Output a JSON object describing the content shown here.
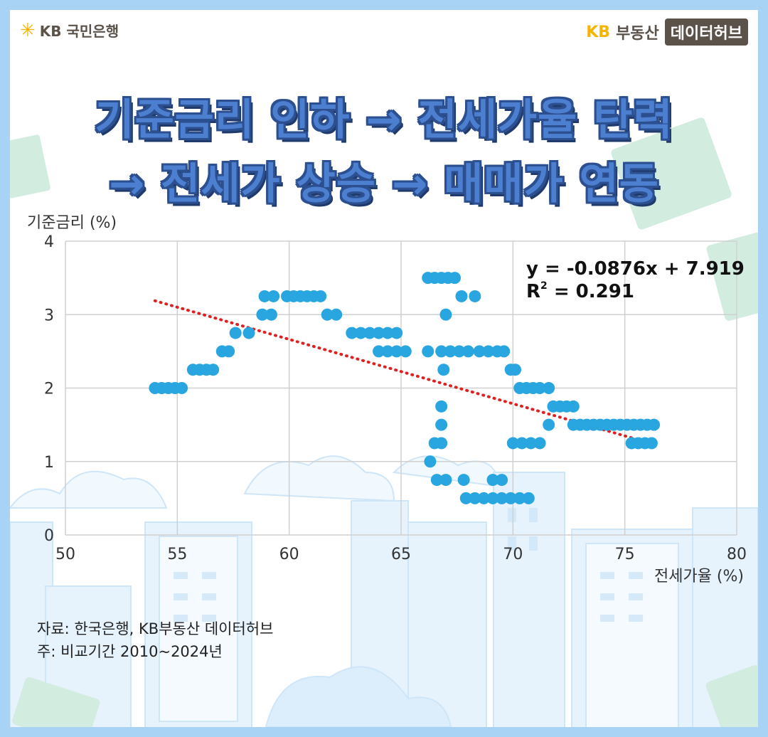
{
  "header": {
    "bank_logo": "KB 국민은행",
    "brand_kb": "KB",
    "brand_name": "부동산",
    "brand_badge": "데이터허브"
  },
  "title": {
    "line1": "기준금리 인하 → 전세가율 탄력",
    "line2": "→ 전세가 상승 → 매매가 연동"
  },
  "chart_data": {
    "type": "scatter",
    "title": "",
    "xlabel": "전세가율 (%)",
    "ylabel": "기준금리 (%)",
    "xlim": [
      50,
      80
    ],
    "ylim": [
      0,
      4
    ],
    "x_ticks": [
      "50",
      "55",
      "60",
      "65",
      "70",
      "75",
      "80"
    ],
    "y_ticks": [
      "0",
      "1",
      "2",
      "3",
      "4"
    ],
    "grid": true,
    "legend": "none",
    "point_color": "#29a6e0",
    "trend_color": "#e02020",
    "trendline": {
      "slope": -0.0876,
      "intercept": 7.919,
      "x_range": [
        54.0,
        75.8
      ]
    },
    "equation": "y = -0.0876x + 7.919",
    "r_squared_prefix": "R",
    "r_squared_sup": "2",
    "r_squared_value": " = 0.291",
    "points": [
      [
        54.0,
        2.0
      ],
      [
        54.3,
        2.0
      ],
      [
        54.6,
        2.0
      ],
      [
        54.9,
        2.0
      ],
      [
        55.2,
        2.0
      ],
      [
        55.7,
        2.25
      ],
      [
        56.0,
        2.25
      ],
      [
        56.3,
        2.25
      ],
      [
        56.6,
        2.25
      ],
      [
        57.0,
        2.5
      ],
      [
        57.3,
        2.5
      ],
      [
        57.6,
        2.75
      ],
      [
        58.2,
        2.75
      ],
      [
        58.8,
        3.0
      ],
      [
        59.2,
        3.0
      ],
      [
        58.9,
        3.25
      ],
      [
        59.3,
        3.25
      ],
      [
        59.9,
        3.25
      ],
      [
        60.2,
        3.25
      ],
      [
        60.5,
        3.25
      ],
      [
        60.8,
        3.25
      ],
      [
        61.1,
        3.25
      ],
      [
        61.4,
        3.25
      ],
      [
        61.7,
        3.0
      ],
      [
        62.1,
        3.0
      ],
      [
        62.8,
        2.75
      ],
      [
        63.2,
        2.75
      ],
      [
        63.6,
        2.75
      ],
      [
        64.0,
        2.75
      ],
      [
        64.4,
        2.75
      ],
      [
        64.8,
        2.75
      ],
      [
        64.0,
        2.5
      ],
      [
        64.4,
        2.5
      ],
      [
        64.8,
        2.5
      ],
      [
        65.2,
        2.5
      ],
      [
        66.2,
        2.5
      ],
      [
        66.2,
        3.5
      ],
      [
        66.5,
        3.5
      ],
      [
        66.8,
        3.5
      ],
      [
        67.1,
        3.5
      ],
      [
        67.4,
        3.5
      ],
      [
        67.7,
        3.25
      ],
      [
        68.3,
        3.25
      ],
      [
        67.0,
        3.0
      ],
      [
        66.8,
        2.5
      ],
      [
        67.2,
        2.5
      ],
      [
        67.6,
        2.5
      ],
      [
        68.0,
        2.5
      ],
      [
        68.5,
        2.5
      ],
      [
        68.9,
        2.5
      ],
      [
        69.3,
        2.5
      ],
      [
        69.6,
        2.5
      ],
      [
        66.9,
        2.25
      ],
      [
        69.9,
        2.25
      ],
      [
        70.1,
        2.25
      ],
      [
        70.3,
        2.0
      ],
      [
        70.6,
        2.0
      ],
      [
        70.9,
        2.0
      ],
      [
        71.2,
        2.0
      ],
      [
        71.6,
        2.0
      ],
      [
        66.8,
        1.75
      ],
      [
        71.8,
        1.75
      ],
      [
        72.1,
        1.75
      ],
      [
        72.4,
        1.75
      ],
      [
        72.7,
        1.75
      ],
      [
        66.8,
        1.5
      ],
      [
        71.6,
        1.5
      ],
      [
        72.7,
        1.5
      ],
      [
        73.0,
        1.5
      ],
      [
        73.3,
        1.5
      ],
      [
        73.6,
        1.5
      ],
      [
        73.9,
        1.5
      ],
      [
        74.2,
        1.5
      ],
      [
        74.5,
        1.5
      ],
      [
        74.8,
        1.5
      ],
      [
        75.1,
        1.5
      ],
      [
        75.4,
        1.5
      ],
      [
        75.7,
        1.5
      ],
      [
        76.0,
        1.5
      ],
      [
        76.3,
        1.5
      ],
      [
        66.5,
        1.25
      ],
      [
        66.8,
        1.25
      ],
      [
        70.0,
        1.25
      ],
      [
        70.4,
        1.25
      ],
      [
        70.8,
        1.25
      ],
      [
        71.2,
        1.25
      ],
      [
        75.3,
        1.25
      ],
      [
        75.6,
        1.25
      ],
      [
        75.9,
        1.25
      ],
      [
        76.2,
        1.25
      ],
      [
        66.3,
        1.0
      ],
      [
        66.6,
        0.75
      ],
      [
        67.0,
        0.75
      ],
      [
        67.8,
        0.75
      ],
      [
        69.1,
        0.75
      ],
      [
        69.5,
        0.75
      ],
      [
        67.9,
        0.5
      ],
      [
        68.3,
        0.5
      ],
      [
        68.7,
        0.5
      ],
      [
        69.1,
        0.5
      ],
      [
        69.5,
        0.5
      ],
      [
        69.9,
        0.5
      ],
      [
        70.3,
        0.5
      ],
      [
        70.7,
        0.5
      ]
    ]
  },
  "source": {
    "line1": "자료: 한국은행, KB부동산 데이터허브",
    "line2": "주: 비교기간 2010~2024년"
  }
}
